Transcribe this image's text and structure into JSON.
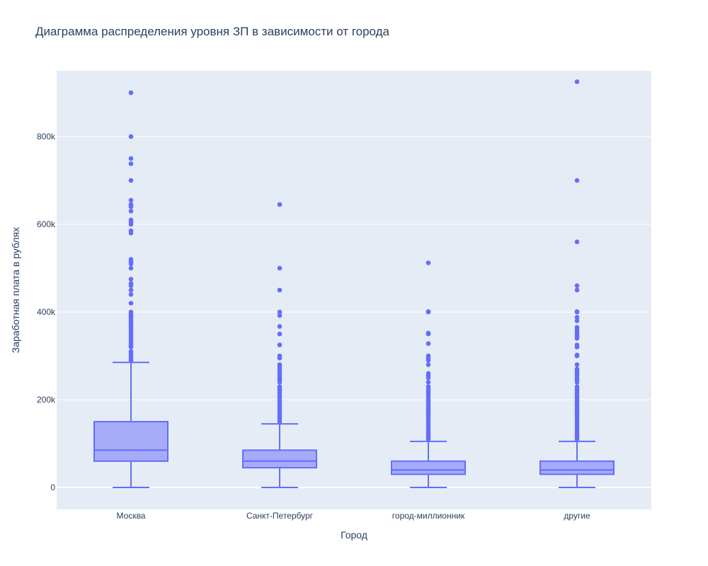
{
  "chart_data": {
    "type": "box",
    "title": "Диаграмма распределения уровня ЗП в зависимости от города",
    "xlabel": "Город",
    "ylabel": "Заработная плата в рублях",
    "categories": [
      "Москва",
      "Санкт-Петербург",
      "город-миллионник",
      "другие"
    ],
    "ylim": [
      -50000,
      950000
    ],
    "yticks": [
      0,
      200000,
      400000,
      600000,
      800000
    ],
    "ytick_labels": [
      "0",
      "200k",
      "400k",
      "600k",
      "800k"
    ],
    "grid": true,
    "colors": {
      "box_line": "#636efa",
      "box_fill": "#a5abf8",
      "marker": "#636efa",
      "plot_bg": "#e5ecf6",
      "text": "#2a3f5f"
    },
    "boxes": [
      {
        "category": "Москва",
        "min": 0,
        "q1": 60000,
        "median": 85000,
        "q3": 150000,
        "max": 285000,
        "outliers": [
          290000,
          295000,
          300000,
          305000,
          310000,
          320000,
          325000,
          330000,
          335000,
          340000,
          345000,
          350000,
          355000,
          360000,
          365000,
          370000,
          375000,
          380000,
          385000,
          390000,
          395000,
          400000,
          420000,
          440000,
          450000,
          460000,
          465000,
          475000,
          500000,
          510000,
          515000,
          520000,
          580000,
          585000,
          600000,
          605000,
          610000,
          630000,
          640000,
          645000,
          655000,
          700000,
          738000,
          750000,
          800000,
          900000
        ]
      },
      {
        "category": "Санкт-Петербург",
        "min": 0,
        "q1": 45000,
        "median": 60000,
        "q3": 85000,
        "max": 145000,
        "outliers": [
          150000,
          155000,
          160000,
          165000,
          170000,
          175000,
          180000,
          185000,
          190000,
          195000,
          200000,
          205000,
          210000,
          215000,
          220000,
          225000,
          230000,
          240000,
          245000,
          250000,
          255000,
          260000,
          265000,
          270000,
          275000,
          280000,
          295000,
          300000,
          325000,
          350000,
          367000,
          392000,
          400000,
          450000,
          500000,
          645000
        ]
      },
      {
        "category": "город-миллионник",
        "min": 0,
        "q1": 30000,
        "median": 40000,
        "q3": 60000,
        "max": 105000,
        "outliers": [
          110000,
          115000,
          120000,
          125000,
          130000,
          135000,
          140000,
          145000,
          150000,
          155000,
          160000,
          165000,
          170000,
          175000,
          180000,
          185000,
          190000,
          195000,
          200000,
          205000,
          210000,
          215000,
          220000,
          225000,
          230000,
          240000,
          250000,
          255000,
          260000,
          280000,
          290000,
          295000,
          300000,
          328000,
          350000,
          352000,
          400000,
          401000,
          512000
        ]
      },
      {
        "category": "другие",
        "min": 0,
        "q1": 30000,
        "median": 40000,
        "q3": 60000,
        "max": 105000,
        "outliers": [
          110000,
          115000,
          120000,
          125000,
          130000,
          135000,
          140000,
          145000,
          150000,
          155000,
          160000,
          165000,
          170000,
          175000,
          180000,
          185000,
          190000,
          195000,
          200000,
          205000,
          210000,
          215000,
          220000,
          225000,
          230000,
          240000,
          245000,
          250000,
          255000,
          260000,
          265000,
          270000,
          280000,
          300000,
          302000,
          320000,
          325000,
          340000,
          345000,
          350000,
          355000,
          360000,
          365000,
          380000,
          388000,
          400000,
          401000,
          450000,
          460000,
          560000,
          700000,
          925000
        ]
      }
    ]
  }
}
